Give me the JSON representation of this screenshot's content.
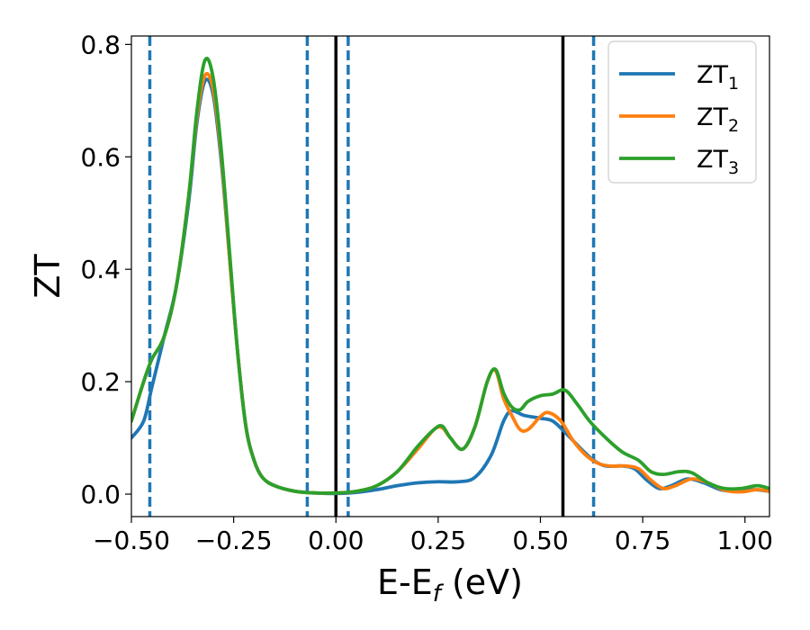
{
  "chart_data": {
    "type": "line",
    "xlabel": "E-E",
    "xlabel_sub": "f",
    "xlabel_unit": " (eV)",
    "ylabel": "ZT",
    "xlim": [
      -0.5,
      1.06
    ],
    "ylim": [
      -0.04,
      0.815
    ],
    "xticks": [
      -0.5,
      -0.25,
      0.0,
      0.25,
      0.5,
      0.75,
      1.0
    ],
    "xtick_labels": [
      "−0.50",
      "−0.25",
      "0.00",
      "0.25",
      "0.50",
      "0.75",
      "1.00"
    ],
    "yticks": [
      0.0,
      0.2,
      0.4,
      0.6,
      0.8
    ],
    "ytick_labels": [
      "0.0",
      "0.2",
      "0.4",
      "0.6",
      "0.8"
    ],
    "grid": false,
    "legend_position": "top-right",
    "vlines_dashed": [
      -0.455,
      -0.07,
      0.03,
      0.63
    ],
    "vlines_dashed_color": "#1f77b4",
    "vlines_solid": [
      0.0,
      0.555
    ],
    "vlines_solid_color": "#000000",
    "series": [
      {
        "name": "ZT",
        "name_sub": "1",
        "color": "#1f77b4",
        "points": [
          [
            -0.5,
            0.1
          ],
          [
            -0.47,
            0.13
          ],
          [
            -0.45,
            0.19
          ],
          [
            -0.42,
            0.28
          ],
          [
            -0.39,
            0.37
          ],
          [
            -0.36,
            0.52
          ],
          [
            -0.34,
            0.66
          ],
          [
            -0.32,
            0.735
          ],
          [
            -0.3,
            0.71
          ],
          [
            -0.28,
            0.59
          ],
          [
            -0.26,
            0.42
          ],
          [
            -0.24,
            0.25
          ],
          [
            -0.22,
            0.12
          ],
          [
            -0.2,
            0.06
          ],
          [
            -0.18,
            0.03
          ],
          [
            -0.15,
            0.015
          ],
          [
            -0.1,
            0.005
          ],
          [
            -0.05,
            0.002
          ],
          [
            0.0,
            0.001
          ],
          [
            0.05,
            0.003
          ],
          [
            0.1,
            0.008
          ],
          [
            0.15,
            0.015
          ],
          [
            0.2,
            0.02
          ],
          [
            0.25,
            0.022
          ],
          [
            0.3,
            0.022
          ],
          [
            0.34,
            0.03
          ],
          [
            0.38,
            0.07
          ],
          [
            0.41,
            0.13
          ],
          [
            0.43,
            0.148
          ],
          [
            0.46,
            0.14
          ],
          [
            0.5,
            0.135
          ],
          [
            0.53,
            0.13
          ],
          [
            0.56,
            0.11
          ],
          [
            0.6,
            0.08
          ],
          [
            0.63,
            0.06
          ],
          [
            0.66,
            0.05
          ],
          [
            0.7,
            0.05
          ],
          [
            0.73,
            0.045
          ],
          [
            0.76,
            0.025
          ],
          [
            0.79,
            0.01
          ],
          [
            0.82,
            0.015
          ],
          [
            0.86,
            0.027
          ],
          [
            0.9,
            0.02
          ],
          [
            0.94,
            0.008
          ],
          [
            0.98,
            0.005
          ],
          [
            1.02,
            0.008
          ],
          [
            1.06,
            0.005
          ]
        ]
      },
      {
        "name": "ZT",
        "name_sub": "2",
        "color": "#ff7f0e",
        "points": [
          [
            -0.5,
            0.13
          ],
          [
            -0.47,
            0.2
          ],
          [
            -0.45,
            0.24
          ],
          [
            -0.42,
            0.28
          ],
          [
            -0.39,
            0.37
          ],
          [
            -0.36,
            0.53
          ],
          [
            -0.34,
            0.67
          ],
          [
            -0.32,
            0.745
          ],
          [
            -0.3,
            0.72
          ],
          [
            -0.28,
            0.6
          ],
          [
            -0.26,
            0.42
          ],
          [
            -0.24,
            0.25
          ],
          [
            -0.22,
            0.12
          ],
          [
            -0.2,
            0.06
          ],
          [
            -0.18,
            0.03
          ],
          [
            -0.15,
            0.015
          ],
          [
            -0.1,
            0.005
          ],
          [
            -0.05,
            0.002
          ],
          [
            0.0,
            0.002
          ],
          [
            0.05,
            0.005
          ],
          [
            0.1,
            0.015
          ],
          [
            0.15,
            0.04
          ],
          [
            0.2,
            0.08
          ],
          [
            0.24,
            0.115
          ],
          [
            0.26,
            0.118
          ],
          [
            0.28,
            0.1
          ],
          [
            0.31,
            0.08
          ],
          [
            0.34,
            0.12
          ],
          [
            0.37,
            0.2
          ],
          [
            0.39,
            0.22
          ],
          [
            0.41,
            0.17
          ],
          [
            0.43,
            0.14
          ],
          [
            0.45,
            0.115
          ],
          [
            0.47,
            0.115
          ],
          [
            0.5,
            0.138
          ],
          [
            0.52,
            0.145
          ],
          [
            0.55,
            0.13
          ],
          [
            0.58,
            0.095
          ],
          [
            0.61,
            0.07
          ],
          [
            0.64,
            0.055
          ],
          [
            0.67,
            0.05
          ],
          [
            0.71,
            0.05
          ],
          [
            0.74,
            0.045
          ],
          [
            0.77,
            0.025
          ],
          [
            0.8,
            0.01
          ],
          [
            0.83,
            0.015
          ],
          [
            0.87,
            0.027
          ],
          [
            0.91,
            0.02
          ],
          [
            0.95,
            0.007
          ],
          [
            0.99,
            0.004
          ],
          [
            1.03,
            0.008
          ],
          [
            1.06,
            0.005
          ]
        ]
      },
      {
        "name": "ZT",
        "name_sub": "3",
        "color": "#2ca02c",
        "points": [
          [
            -0.5,
            0.13
          ],
          [
            -0.47,
            0.2
          ],
          [
            -0.45,
            0.24
          ],
          [
            -0.42,
            0.28
          ],
          [
            -0.39,
            0.37
          ],
          [
            -0.36,
            0.53
          ],
          [
            -0.34,
            0.68
          ],
          [
            -0.32,
            0.772
          ],
          [
            -0.3,
            0.74
          ],
          [
            -0.28,
            0.61
          ],
          [
            -0.26,
            0.43
          ],
          [
            -0.24,
            0.25
          ],
          [
            -0.22,
            0.12
          ],
          [
            -0.2,
            0.06
          ],
          [
            -0.18,
            0.03
          ],
          [
            -0.15,
            0.015
          ],
          [
            -0.1,
            0.005
          ],
          [
            -0.05,
            0.002
          ],
          [
            0.0,
            0.002
          ],
          [
            0.05,
            0.005
          ],
          [
            0.1,
            0.015
          ],
          [
            0.15,
            0.04
          ],
          [
            0.2,
            0.085
          ],
          [
            0.24,
            0.115
          ],
          [
            0.26,
            0.121
          ],
          [
            0.28,
            0.1
          ],
          [
            0.31,
            0.08
          ],
          [
            0.34,
            0.12
          ],
          [
            0.37,
            0.2
          ],
          [
            0.39,
            0.222
          ],
          [
            0.41,
            0.18
          ],
          [
            0.43,
            0.155
          ],
          [
            0.45,
            0.15
          ],
          [
            0.47,
            0.165
          ],
          [
            0.5,
            0.175
          ],
          [
            0.53,
            0.178
          ],
          [
            0.56,
            0.185
          ],
          [
            0.59,
            0.16
          ],
          [
            0.62,
            0.13
          ],
          [
            0.66,
            0.1
          ],
          [
            0.7,
            0.075
          ],
          [
            0.74,
            0.06
          ],
          [
            0.77,
            0.04
          ],
          [
            0.8,
            0.035
          ],
          [
            0.84,
            0.04
          ],
          [
            0.87,
            0.038
          ],
          [
            0.91,
            0.02
          ],
          [
            0.95,
            0.01
          ],
          [
            0.99,
            0.01
          ],
          [
            1.03,
            0.015
          ],
          [
            1.06,
            0.01
          ]
        ]
      }
    ]
  }
}
